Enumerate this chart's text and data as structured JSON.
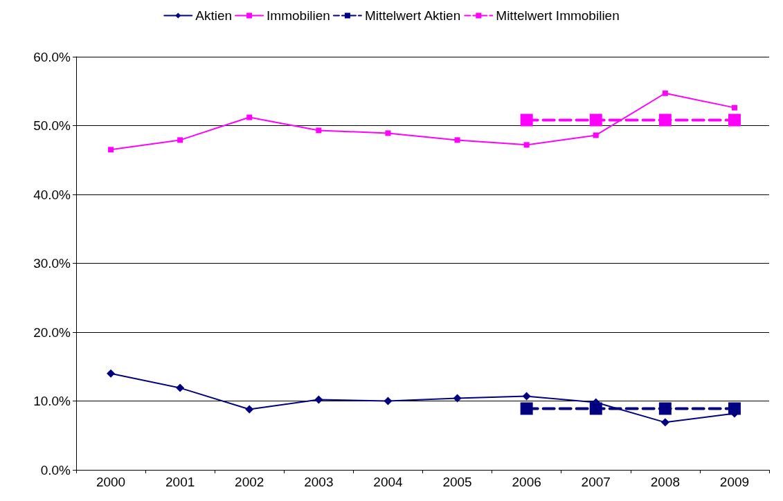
{
  "chart_data": {
    "type": "line",
    "categories": [
      "2000",
      "2001",
      "2002",
      "2003",
      "2004",
      "2005",
      "2006",
      "2007",
      "2008",
      "2009"
    ],
    "series": [
      {
        "name": "Aktien",
        "color": "#000080",
        "marker": "diamond",
        "line_style": "solid",
        "values": [
          14.0,
          11.9,
          8.8,
          10.2,
          10.0,
          10.4,
          10.7,
          9.8,
          6.9,
          8.2
        ]
      },
      {
        "name": "Immobilien",
        "color": "#ff00ff",
        "marker": "square",
        "line_style": "solid",
        "values": [
          46.5,
          47.9,
          51.2,
          49.3,
          48.9,
          47.9,
          47.2,
          48.6,
          54.7,
          52.6
        ]
      },
      {
        "name": "Mittelwert Aktien",
        "color": "#000080",
        "marker": "square",
        "line_style": "dashed",
        "values": [
          null,
          null,
          null,
          null,
          null,
          null,
          8.9,
          8.9,
          8.9,
          8.9
        ]
      },
      {
        "name": "Mittelwert Immobilien",
        "color": "#ff00ff",
        "marker": "square",
        "line_style": "dashed",
        "values": [
          null,
          null,
          null,
          null,
          null,
          null,
          50.8,
          50.8,
          50.8,
          50.8
        ]
      }
    ],
    "ylim": [
      0,
      60
    ],
    "yticks": [
      {
        "value": 0,
        "label": "0.0%"
      },
      {
        "value": 10,
        "label": "10.0%"
      },
      {
        "value": 20,
        "label": "20.0%"
      },
      {
        "value": 30,
        "label": "30.0%"
      },
      {
        "value": 40,
        "label": "40.0%"
      },
      {
        "value": 50,
        "label": "50.0%"
      },
      {
        "value": 60,
        "label": "60.0%"
      }
    ],
    "grid": "y",
    "legend": "top"
  }
}
